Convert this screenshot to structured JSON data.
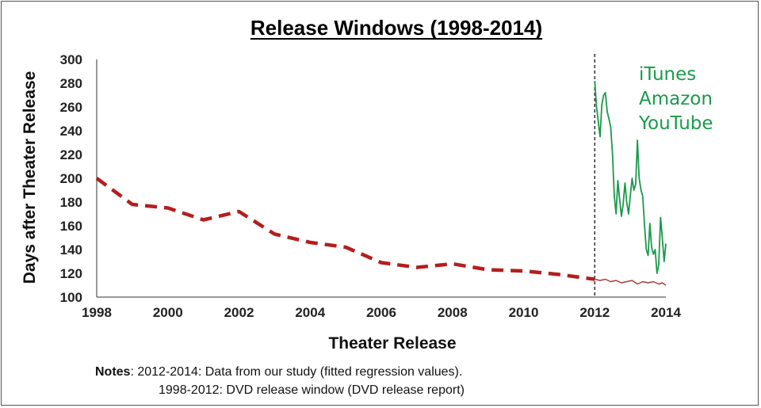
{
  "chart_data": {
    "type": "line",
    "title": "Release Windows (1998-2014)",
    "xlabel": "Theater Release",
    "ylabel": "Days after Theater Release",
    "xlim": [
      1998,
      2014
    ],
    "ylim": [
      100,
      300
    ],
    "x_ticks": [
      "1998",
      "2000",
      "2002",
      "2004",
      "2006",
      "2008",
      "2010",
      "2012",
      "2014"
    ],
    "y_ticks": [
      "100",
      "120",
      "140",
      "160",
      "180",
      "200",
      "220",
      "240",
      "260",
      "280",
      "300"
    ],
    "grid": false,
    "divider_x": 2012,
    "annotation": {
      "lines": [
        "iTunes",
        "Amazon",
        "YouTube"
      ],
      "color": "#1a9a4a"
    },
    "series": [
      {
        "style": "dashed",
        "color": "#b41e1e",
        "points": [
          [
            1998,
            200
          ],
          [
            1999,
            178
          ],
          [
            2000,
            175
          ],
          [
            2001,
            165
          ],
          [
            2002,
            172
          ],
          [
            2003,
            153
          ],
          [
            2004,
            146
          ],
          [
            2005,
            142
          ],
          [
            2006,
            129
          ],
          [
            2007,
            125
          ],
          [
            2008,
            128
          ],
          [
            2009,
            123
          ],
          [
            2010,
            122
          ],
          [
            2011,
            119
          ],
          [
            2012,
            115
          ]
        ]
      },
      {
        "style": "solid-thin",
        "color": "#a83a3a",
        "points": [
          [
            2012.0,
            115
          ],
          [
            2012.15,
            114
          ],
          [
            2012.3,
            115
          ],
          [
            2012.45,
            113
          ],
          [
            2012.6,
            114
          ],
          [
            2012.75,
            112
          ],
          [
            2012.9,
            113
          ],
          [
            2013.05,
            114
          ],
          [
            2013.2,
            111
          ],
          [
            2013.35,
            113
          ],
          [
            2013.5,
            112
          ],
          [
            2013.65,
            113
          ],
          [
            2013.8,
            111
          ],
          [
            2013.9,
            112
          ],
          [
            2014.0,
            110
          ]
        ]
      },
      {
        "style": "solid",
        "color": "#1a9a4a",
        "points": [
          [
            2012.0,
            282
          ],
          [
            2012.05,
            260
          ],
          [
            2012.1,
            248
          ],
          [
            2012.15,
            235
          ],
          [
            2012.2,
            262
          ],
          [
            2012.25,
            270
          ],
          [
            2012.3,
            272
          ],
          [
            2012.35,
            256
          ],
          [
            2012.4,
            250
          ],
          [
            2012.45,
            243
          ],
          [
            2012.5,
            220
          ],
          [
            2012.55,
            185
          ],
          [
            2012.6,
            170
          ],
          [
            2012.65,
            198
          ],
          [
            2012.7,
            182
          ],
          [
            2012.75,
            168
          ],
          [
            2012.8,
            178
          ],
          [
            2012.85,
            196
          ],
          [
            2012.9,
            180
          ],
          [
            2012.95,
            170
          ],
          [
            2013.0,
            185
          ],
          [
            2013.05,
            200
          ],
          [
            2013.1,
            190
          ],
          [
            2013.15,
            195
          ],
          [
            2013.2,
            232
          ],
          [
            2013.25,
            200
          ],
          [
            2013.3,
            190
          ],
          [
            2013.35,
            185
          ],
          [
            2013.4,
            160
          ],
          [
            2013.45,
            140
          ],
          [
            2013.5,
            135
          ],
          [
            2013.55,
            162
          ],
          [
            2013.6,
            142
          ],
          [
            2013.65,
            136
          ],
          [
            2013.7,
            140
          ],
          [
            2013.75,
            120
          ],
          [
            2013.8,
            127
          ],
          [
            2013.85,
            167
          ],
          [
            2013.9,
            150
          ],
          [
            2013.95,
            130
          ],
          [
            2014.0,
            145
          ]
        ]
      }
    ]
  },
  "notes": {
    "label": "Notes",
    "line1": ":  2012-2014: Data from our study (fitted regression values).",
    "line2": "1998-2012: DVD release  window (DVD release  report)"
  }
}
